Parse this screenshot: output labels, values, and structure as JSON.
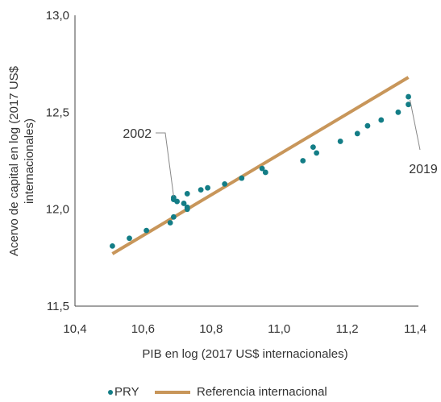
{
  "chart_data": {
    "type": "scatter",
    "xlabel": "PIB en log (2017 US$ internacionales)",
    "ylabel_lines": [
      "Acervo de capital en log (2017 US$",
      "internacionales)"
    ],
    "xlim": [
      10.4,
      11.4
    ],
    "ylim": [
      11.5,
      13.0
    ],
    "x_ticks": [
      "10,4",
      "10,6",
      "10,8",
      "11,0",
      "11,2",
      "11,4"
    ],
    "y_ticks": [
      "11,5",
      "12,0",
      "12,5",
      "13,0"
    ],
    "series": [
      {
        "name": "PRY",
        "kind": "scatter",
        "color": "#137d86",
        "points": [
          [
            10.51,
            11.81
          ],
          [
            10.56,
            11.85
          ],
          [
            10.61,
            11.89
          ],
          [
            10.68,
            11.93
          ],
          [
            10.69,
            12.06
          ],
          [
            10.69,
            12.05
          ],
          [
            10.7,
            12.04
          ],
          [
            10.69,
            11.96
          ],
          [
            10.72,
            12.03
          ],
          [
            10.73,
            12.01
          ],
          [
            10.73,
            12.0
          ],
          [
            10.73,
            12.08
          ],
          [
            10.77,
            12.1
          ],
          [
            10.79,
            12.11
          ],
          [
            10.84,
            12.13
          ],
          [
            10.89,
            12.16
          ],
          [
            10.95,
            12.21
          ],
          [
            10.96,
            12.19
          ],
          [
            11.07,
            12.25
          ],
          [
            11.1,
            12.32
          ],
          [
            11.11,
            12.29
          ],
          [
            11.18,
            12.35
          ],
          [
            11.23,
            12.39
          ],
          [
            11.26,
            12.43
          ],
          [
            11.3,
            12.46
          ],
          [
            11.35,
            12.5
          ],
          [
            11.38,
            12.58
          ],
          [
            11.38,
            12.54
          ]
        ]
      },
      {
        "name": "Referencia internacional",
        "kind": "line",
        "color": "#c8965a",
        "points": [
          [
            10.51,
            11.77
          ],
          [
            11.38,
            12.68
          ]
        ]
      }
    ],
    "annotations": [
      {
        "label": "2002",
        "x": 10.69,
        "y": 12.05
      },
      {
        "label": "2019",
        "x": 11.38,
        "y": 12.58
      }
    ],
    "legend_position": "bottom-center",
    "grid": false
  }
}
